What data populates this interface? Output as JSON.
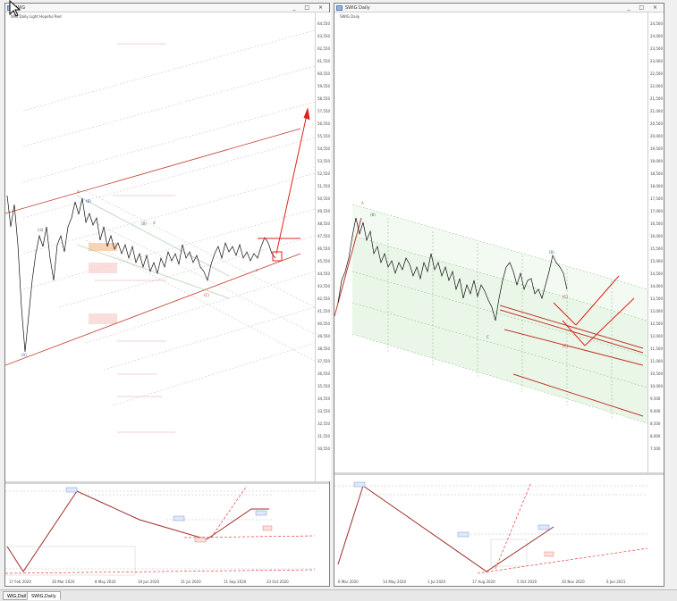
{
  "window_left": {
    "title": "WIG",
    "controls": [
      "_",
      "□",
      "×"
    ],
    "legend": "WIG Daily  Light Hopeful  Red",
    "dates": [
      "17 Feb 2020",
      "30 Mar 2020",
      "8 May 2020",
      "19 Jun 2020",
      "31 Jul 2020",
      "11 Sep 2020",
      "23 Oct 2020"
    ],
    "prices": [
      "64,550",
      "63,550",
      "62,550",
      "61,550",
      "60,550",
      "59,550",
      "58,550",
      "57,550",
      "56,550",
      "55,550",
      "54,550",
      "53,550",
      "52,550",
      "51,550",
      "50,550",
      "49,550",
      "48,550",
      "47,550",
      "46,550",
      "45,550",
      "44,550",
      "43,550",
      "42,550",
      "41,550",
      "40,550",
      "39,550",
      "38,550",
      "37,550",
      "36,550",
      "35,550",
      "34,550",
      "33,550",
      "32,550",
      "31,550",
      "30,550"
    ]
  },
  "window_right": {
    "title": "SWIG Daily",
    "controls": [
      "_",
      "□",
      "×"
    ],
    "legend": "SWIG Daily",
    "dates": [
      "6 Mar 2020",
      "14 May 2020",
      "1 Jul 2020",
      "17 Aug 2020",
      "5 Oct 2020",
      "20 Nov 2020",
      "6 Jan 2021"
    ],
    "prices": [
      "24,500",
      "24,000",
      "23,500",
      "23,000",
      "22,500",
      "22,000",
      "21,500",
      "21,000",
      "20,500",
      "20,000",
      "19,500",
      "19,000",
      "18,500",
      "18,000",
      "17,500",
      "17,000",
      "16,500",
      "16,000",
      "15,500",
      "15,000",
      "14,500",
      "14,000",
      "13,500",
      "13,000",
      "12,500",
      "12,000",
      "11,500",
      "11,000",
      "10,500",
      "10,000",
      "9,500",
      "9,000",
      "8,500",
      "8,000",
      "7,500"
    ]
  },
  "tabs": [
    "WIG,Daily",
    "SWIG,Daily"
  ],
  "active_tab": 1,
  "colors": {
    "trend_red": "#c0392b",
    "bright_red": "#e0201c",
    "channel_green": "#e8f5e6",
    "grid_dashed": "#bbbbbb",
    "price_black": "#111111"
  }
}
